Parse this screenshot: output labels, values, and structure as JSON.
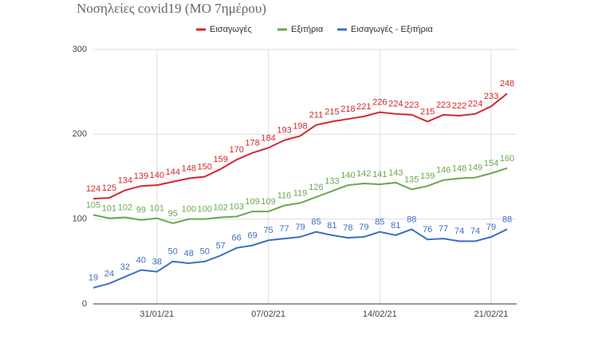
{
  "chart_data": {
    "type": "line",
    "title": "Νοσηλείες covid19 (ΜΟ 7ημέρου)",
    "categories": [
      null,
      null,
      null,
      null,
      "31/01/21",
      null,
      null,
      null,
      null,
      null,
      null,
      "07/02/21",
      null,
      null,
      null,
      null,
      null,
      null,
      "14/02/21",
      null,
      null,
      null,
      null,
      null,
      null,
      "21/02/21",
      null
    ],
    "series": [
      {
        "name": "Εισαγωγές",
        "color": "#d3282b",
        "values": [
          124,
          125,
          134,
          139,
          140,
          144,
          148,
          150,
          159,
          170,
          178,
          184,
          193,
          198,
          211,
          215,
          218,
          221,
          226,
          224,
          223,
          215,
          223,
          222,
          224,
          233,
          248
        ]
      },
      {
        "name": "Εξιτήρια",
        "color": "#6aa84f",
        "values": [
          105,
          101,
          102,
          99,
          101,
          95,
          100,
          100,
          102,
          103,
          109,
          109,
          116,
          119,
          126,
          133,
          140,
          142,
          141,
          143,
          135,
          139,
          146,
          148,
          149,
          154,
          160
        ]
      },
      {
        "name": "Εισαγωγές - Εξιτήρια",
        "color": "#3c6fc4",
        "values": [
          19,
          24,
          32,
          40,
          38,
          50,
          48,
          50,
          57,
          66,
          69,
          75,
          77,
          79,
          85,
          81,
          78,
          79,
          85,
          81,
          88,
          76,
          77,
          74,
          74,
          79,
          88
        ]
      }
    ],
    "ylim": [
      0,
      300
    ],
    "yticks": [
      0,
      100,
      200,
      300
    ],
    "grid": true,
    "legend": "top"
  }
}
